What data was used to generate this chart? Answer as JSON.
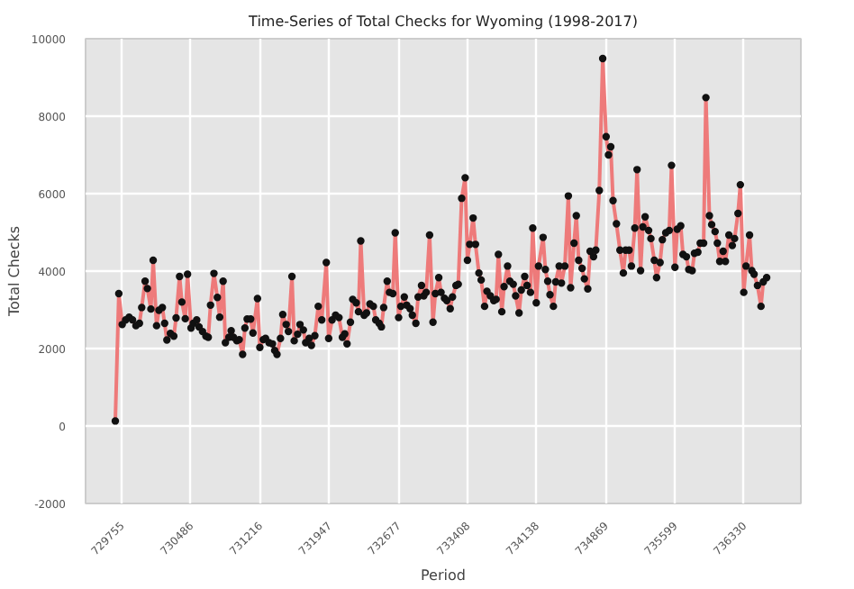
{
  "chart_data": {
    "type": "line",
    "title": "Time-Series of Total Checks for Wyoming (1998-2017)",
    "xlabel": "Period",
    "ylabel": "Total Checks",
    "xlim": [
      729374,
      736930
    ],
    "xticks": [
      729755,
      730486,
      731216,
      731947,
      732677,
      733408,
      734138,
      734869,
      735599,
      736330
    ],
    "ylim": [
      -2000,
      10000
    ],
    "yticks": [
      -2000,
      0,
      2000,
      4000,
      6000,
      8000,
      10000
    ],
    "grid": true,
    "marker": "circle",
    "line_style": "solid",
    "series": [
      {
        "color": "#ee7a7a",
        "x": [
          729688,
          729725,
          729761,
          729797,
          729834,
          729870,
          729906,
          729943,
          729967,
          730003,
          730027,
          730064,
          730088,
          730124,
          730149,
          730185,
          730209,
          730233,
          730270,
          730306,
          730330,
          730367,
          730391,
          730427,
          730451,
          730488,
          730512,
          730548,
          730573,
          730609,
          730645,
          730670,
          730694,
          730730,
          730766,
          730791,
          730827,
          730851,
          730888,
          730912,
          730936,
          730972,
          730997,
          731033,
          731057,
          731081,
          731118,
          731142,
          731190,
          731215,
          731251,
          731275,
          731312,
          731348,
          731372,
          731396,
          731433,
          731457,
          731493,
          731517,
          731554,
          731578,
          731614,
          731639,
          731675,
          731699,
          731736,
          731760,
          731796,
          731832,
          731869,
          731917,
          731942,
          731978,
          732015,
          732051,
          732087,
          732112,
          732136,
          732172,
          732196,
          732233,
          732257,
          732281,
          732317,
          732342,
          732378,
          732414,
          732439,
          732475,
          732499,
          732523,
          732560,
          732584,
          732620,
          732645,
          732681,
          732705,
          732741,
          732766,
          732802,
          732826,
          732863,
          732887,
          732923,
          732947,
          732972,
          733008,
          733044,
          733069,
          733105,
          733129,
          733165,
          733190,
          733226,
          733250,
          733287,
          733311,
          733347,
          733384,
          733408,
          733432,
          733468,
          733493,
          733529,
          733553,
          733589,
          733614,
          733650,
          733686,
          733711,
          733735,
          733771,
          733795,
          733832,
          733856,
          733892,
          733917,
          733953,
          733977,
          734013,
          734038,
          734074,
          734098,
          734135,
          734159,
          734207,
          734231,
          734256,
          734280,
          734316,
          734340,
          734377,
          734401,
          734437,
          734474,
          734498,
          734534,
          734558,
          734583,
          734619,
          734643,
          734679,
          734704,
          734740,
          734764,
          734801,
          734837,
          734873,
          734898,
          734922,
          734946,
          734982,
          735019,
          735055,
          735079,
          735116,
          735140,
          735176,
          735200,
          735237,
          735261,
          735285,
          735322,
          735346,
          735382,
          735406,
          735443,
          735467,
          735503,
          735540,
          735564,
          735600,
          735624,
          735661,
          735685,
          735721,
          735746,
          735782,
          735806,
          735842,
          735867,
          735903,
          735927,
          735964,
          735988,
          736024,
          736048,
          736073,
          736109,
          736133,
          736170,
          736206,
          736230,
          736266,
          736291,
          736327,
          736351,
          736388,
          736412,
          736436,
          736472,
          736509,
          736533,
          736569
        ],
        "values": [
          130,
          3420,
          2620,
          2740,
          2810,
          2740,
          2590,
          2650,
          3060,
          3740,
          3550,
          3020,
          4280,
          2590,
          2990,
          3060,
          2650,
          2220,
          2390,
          2320,
          2790,
          3860,
          3200,
          2770,
          3920,
          2530,
          2650,
          2740,
          2560,
          2440,
          2320,
          2290,
          3120,
          3940,
          3320,
          2810,
          3740,
          2150,
          2290,
          2460,
          2290,
          2200,
          2230,
          1850,
          2530,
          2760,
          2760,
          2400,
          3290,
          2030,
          2230,
          2260,
          2150,
          2120,
          1950,
          1850,
          2260,
          2880,
          2620,
          2440,
          3860,
          2200,
          2370,
          2620,
          2480,
          2150,
          2260,
          2080,
          2330,
          3090,
          2740,
          4220,
          2260,
          2740,
          2860,
          2800,
          2290,
          2380,
          2120,
          2680,
          3270,
          3180,
          2950,
          4780,
          2860,
          2920,
          3150,
          3090,
          2740,
          2650,
          2560,
          3060,
          3740,
          3450,
          3420,
          4990,
          2800,
          3090,
          3330,
          3120,
          3030,
          2860,
          2650,
          3330,
          3630,
          3360,
          3450,
          4930,
          2680,
          3420,
          3830,
          3450,
          3300,
          3240,
          3030,
          3330,
          3630,
          3660,
          5880,
          6410,
          4280,
          4690,
          5370,
          4690,
          3950,
          3770,
          3090,
          3480,
          3360,
          3240,
          3270,
          4430,
          2950,
          3600,
          4130,
          3740,
          3660,
          3360,
          2920,
          3510,
          3860,
          3630,
          3450,
          5110,
          3180,
          4130,
          4870,
          4040,
          3740,
          3390,
          3090,
          3720,
          4130,
          3690,
          4130,
          5940,
          3570,
          4720,
          5430,
          4280,
          4070,
          3800,
          3540,
          4510,
          4370,
          4540,
          6080,
          9490,
          7470,
          7000,
          7210,
          5820,
          5220,
          4540,
          3950,
          4540,
          4540,
          4130,
          5110,
          6620,
          4010,
          5140,
          5400,
          5050,
          4840,
          4280,
          3830,
          4220,
          4810,
          4990,
          5050,
          6730,
          4100,
          5080,
          5170,
          4430,
          4370,
          4040,
          4010,
          4460,
          4490,
          4720,
          4720,
          8480,
          5430,
          5200,
          5020,
          4720,
          4250,
          4510,
          4250,
          4930,
          4660,
          4840,
          5490,
          6230,
          3450,
          4130,
          4930,
          4010,
          3920,
          3630,
          3090,
          3720,
          3830
        ]
      }
    ]
  }
}
